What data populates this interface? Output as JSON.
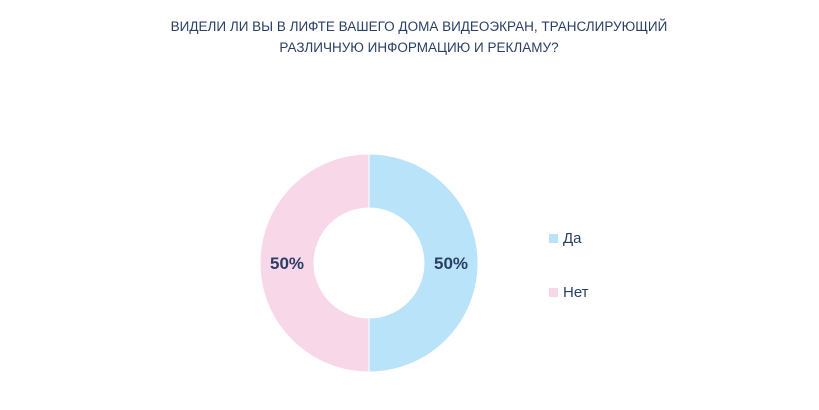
{
  "chart_data": {
    "type": "pie",
    "title": "ВИДЕЛИ ЛИ ВЫ В ЛИФТЕ ВАШЕГО ДОМА ВИДЕОЭКРАН, ТРАНСЛИРУЮЩИЙ РАЗЛИЧНУЮ ИНФОРМАЦИЮ И РЕКЛАМУ?",
    "title_lines": [
      "ВИДЕЛИ ЛИ ВЫ В ЛИФТЕ ВАШЕГО ДОМА ВИДЕОЭКРАН, ТРАНСЛИРУЮЩИЙ",
      "РАЗЛИЧНУЮ ИНФОРМАЦИЮ И РЕКЛАМУ?"
    ],
    "donut": true,
    "legend_position": "right",
    "slices": [
      {
        "label": "Да",
        "value": 50,
        "data_label": "50%",
        "color": "#b8e3f8"
      },
      {
        "label": "Нет",
        "value": 50,
        "data_label": "50%",
        "color": "#f8d7e9"
      }
    ]
  }
}
